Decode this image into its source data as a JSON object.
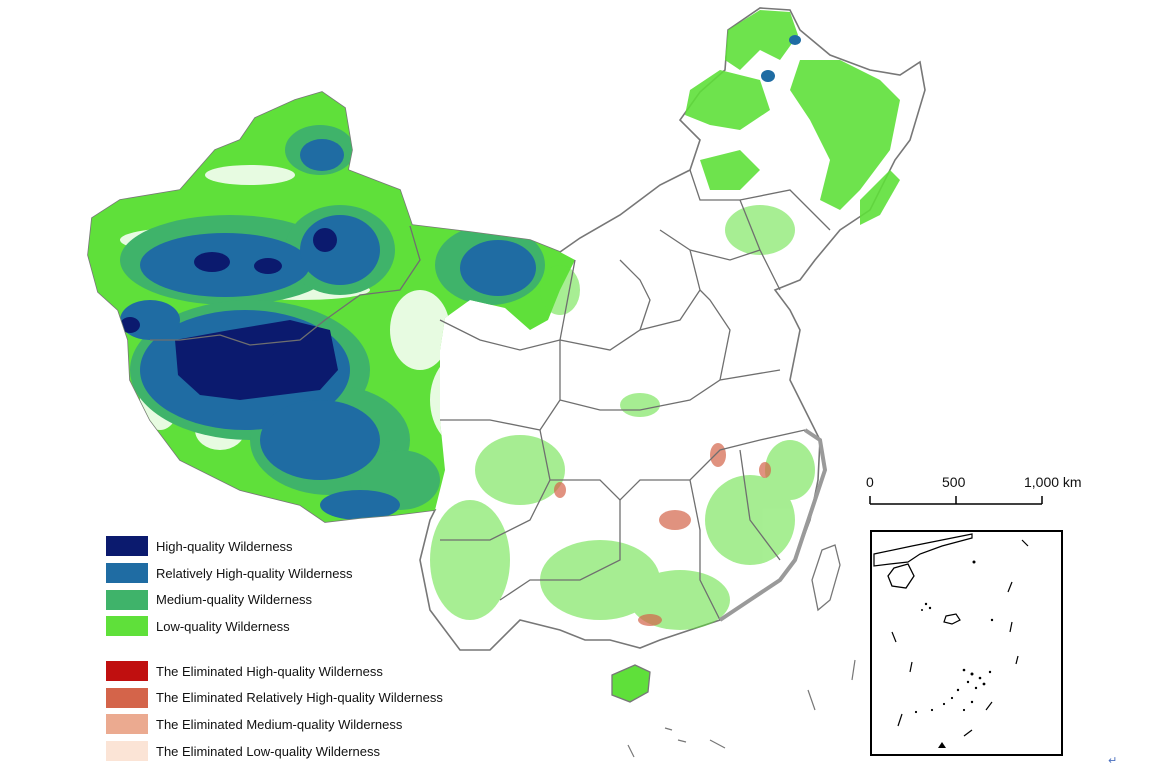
{
  "legend": {
    "quality": [
      {
        "label": "High-quality Wilderness",
        "color": "#0b1a6e"
      },
      {
        "label": "Relatively High-quality Wilderness",
        "color": "#1f6ca3"
      },
      {
        "label": "Medium-quality Wilderness",
        "color": "#3fb36a"
      },
      {
        "label": "Low-quality Wilderness",
        "color": "#5fe03a"
      }
    ],
    "eliminated": [
      {
        "label": "The Eliminated High-quality Wilderness",
        "color": "#c00f0f"
      },
      {
        "label": "The Eliminated Relatively High-quality Wilderness",
        "color": "#d4644a"
      },
      {
        "label": "The Eliminated Medium-quality Wilderness",
        "color": "#ebaa90"
      },
      {
        "label": "The Eliminated Low-quality Wilderness",
        "color": "#fbe4d6"
      }
    ]
  },
  "scale_bar": {
    "labels": [
      "0",
      "500",
      "1,000 km"
    ]
  },
  "return_mark": "↵",
  "map_colors": {
    "boundary": "#6f6f6f",
    "land": "#ffffff",
    "coast": "#9a9a9a"
  }
}
